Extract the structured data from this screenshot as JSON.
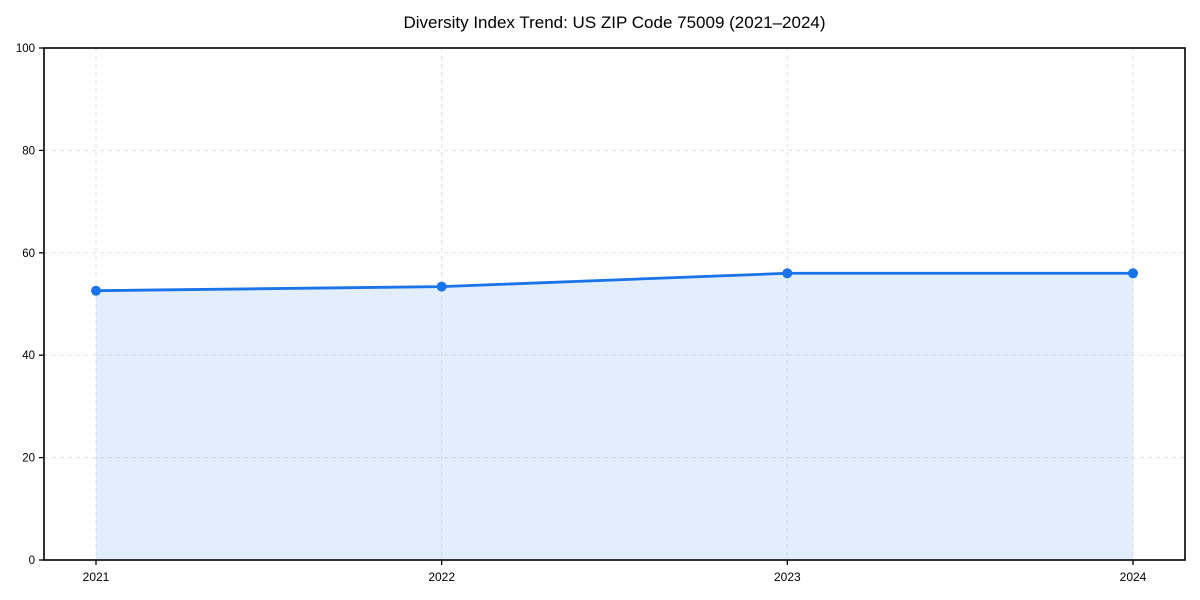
{
  "chart_data": {
    "type": "area",
    "title": "Diversity Index Trend: US ZIP Code 75009 (2021–2024)",
    "categories": [
      "2021",
      "2022",
      "2023",
      "2024"
    ],
    "series": [
      {
        "name": "Diversity Index",
        "values": [
          52.6,
          53.4,
          56.0,
          56.0
        ]
      }
    ],
    "xlabel": "",
    "ylabel": "",
    "ylim": [
      0,
      100
    ],
    "yticks": [
      0,
      20,
      40,
      60,
      80,
      100
    ],
    "grid": "dashed, horizontal and vertical",
    "legend": "none",
    "marker": "circle",
    "colors": {
      "line": "#1a73e8",
      "marker": "#1a73e8",
      "fill": "#1a73e8",
      "fill_opacity": 0.12,
      "grid": "#e2e2e2",
      "spine": "#000000",
      "tick_label": "#000000",
      "background": "#ffffff"
    }
  }
}
